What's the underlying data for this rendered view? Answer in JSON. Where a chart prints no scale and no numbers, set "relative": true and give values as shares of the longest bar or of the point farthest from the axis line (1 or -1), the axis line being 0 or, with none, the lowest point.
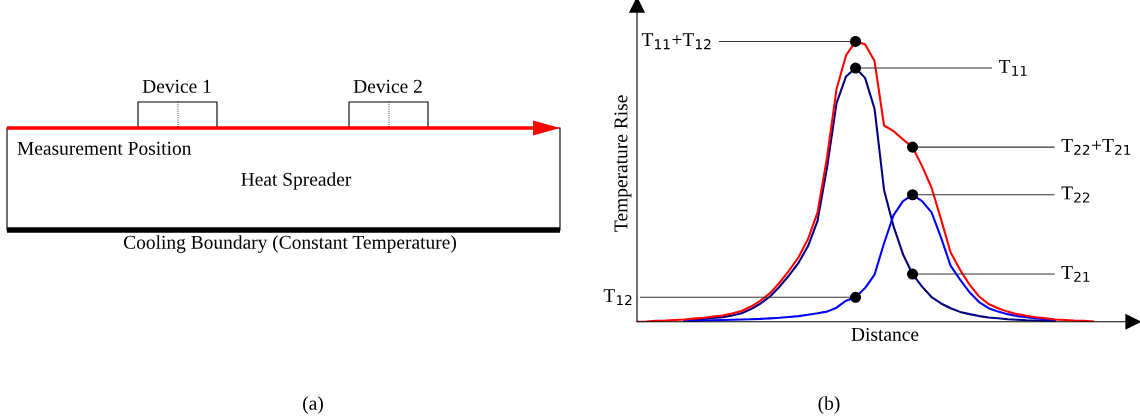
{
  "chart_data": [
    {
      "type": "line",
      "relative": true,
      "xlabel": "Distance",
      "ylabel": "Temperature Rise",
      "categories": [
        null,
        null,
        null,
        null,
        null,
        null,
        null,
        null,
        null,
        null,
        null,
        null,
        null,
        null,
        null,
        null,
        null,
        null,
        null,
        null,
        null,
        null,
        null,
        null,
        null,
        null,
        null,
        null,
        null,
        null,
        null,
        null,
        null,
        null,
        null,
        null,
        null,
        null,
        null,
        null,
        null,
        null,
        null,
        null,
        null,
        null,
        null,
        null,
        null,
        null,
        null
      ],
      "series": [
        {
          "color": "#000080",
          "values": [
            null,
            null,
            null,
            null,
            null,
            0.006,
            0.008,
            0.01,
            0.013,
            0.016,
            0.022,
            0.03,
            0.045,
            0.065,
            0.09,
            0.125,
            0.165,
            0.21,
            0.27,
            0.36,
            0.55,
            0.78,
            0.875,
            0.905,
            0.87,
            0.76,
            0.47,
            0.34,
            0.24,
            0.17,
            0.125,
            0.088,
            0.065,
            0.048,
            0.035,
            0.027,
            0.02,
            0.015,
            0.012,
            0.009,
            0.007,
            0.005,
            0.004,
            0.003,
            0.002,
            null,
            null,
            null,
            null,
            null,
            null
          ]
        },
        {
          "color": "#0000ff",
          "values": [
            null,
            null,
            null,
            null,
            null,
            0.002,
            0.003,
            0.004,
            0.005,
            0.006,
            0.007,
            0.008,
            0.009,
            0.01,
            0.012,
            0.014,
            0.017,
            0.02,
            0.025,
            0.03,
            0.036,
            0.05,
            0.075,
            0.087,
            0.12,
            0.168,
            0.28,
            0.38,
            0.43,
            0.453,
            0.43,
            0.39,
            0.3,
            0.2,
            0.15,
            0.105,
            0.07,
            0.048,
            0.036,
            0.027,
            0.02,
            0.016,
            0.012,
            0.009,
            0.006,
            null,
            null,
            null,
            null,
            null,
            null
          ]
        },
        {
          "color": "#ff0000",
          "values": [
            0,
            0.001,
            0.003,
            0.004,
            0.006,
            0.008,
            0.011,
            0.014,
            0.018,
            0.022,
            0.029,
            0.038,
            0.054,
            0.075,
            0.102,
            0.139,
            0.182,
            0.23,
            0.295,
            0.39,
            0.586,
            0.83,
            0.95,
            1.0,
            0.99,
            0.93,
            0.7,
            0.68,
            0.65,
            0.623,
            0.555,
            0.478,
            0.365,
            0.248,
            0.185,
            0.132,
            0.09,
            0.063,
            0.048,
            0.036,
            0.027,
            0.021,
            0.016,
            0.012,
            0.008,
            0.006,
            0.004,
            0.003,
            0.001,
            null,
            null
          ]
        }
      ],
      "annotations": [
        "T$_{11}$+T$_{12}$",
        "T$_{22}$+T$_{21}$",
        "T$_{11}$",
        "T$_{22}$",
        "T$_{12}$",
        "T$_{21}$",
        "(b)"
      ]
    },
    {
      "type": "other",
      "annotations": [
        "Device 1",
        "Device 2",
        "Measurement Position",
        "Heat Spreader",
        "Cooling Boundary (Constant Temperature)",
        "(a)"
      ]
    }
  ]
}
